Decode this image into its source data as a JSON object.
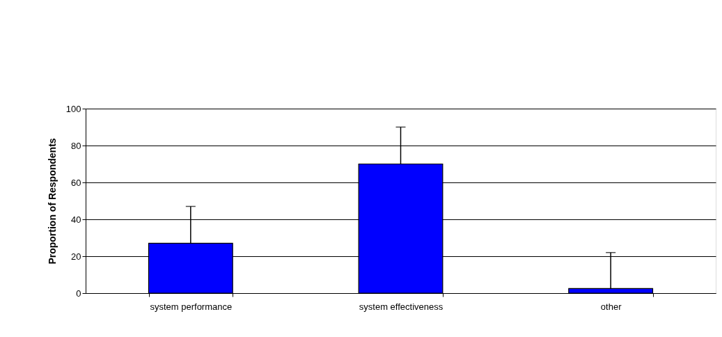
{
  "chart_data": {
    "type": "bar",
    "ylabel": "Proportion of Respondents",
    "categories": [
      "system performance",
      "system effectiveness",
      "other"
    ],
    "values": [
      27,
      70,
      2.5
    ],
    "errors": [
      [
        27,
        47
      ],
      [
        70,
        90
      ],
      [
        2.5,
        22
      ]
    ],
    "color": "#0000ff",
    "ylim": [
      0,
      100
    ],
    "yticks": [
      0,
      20,
      40,
      60,
      80,
      100
    ],
    "grid": "y"
  }
}
